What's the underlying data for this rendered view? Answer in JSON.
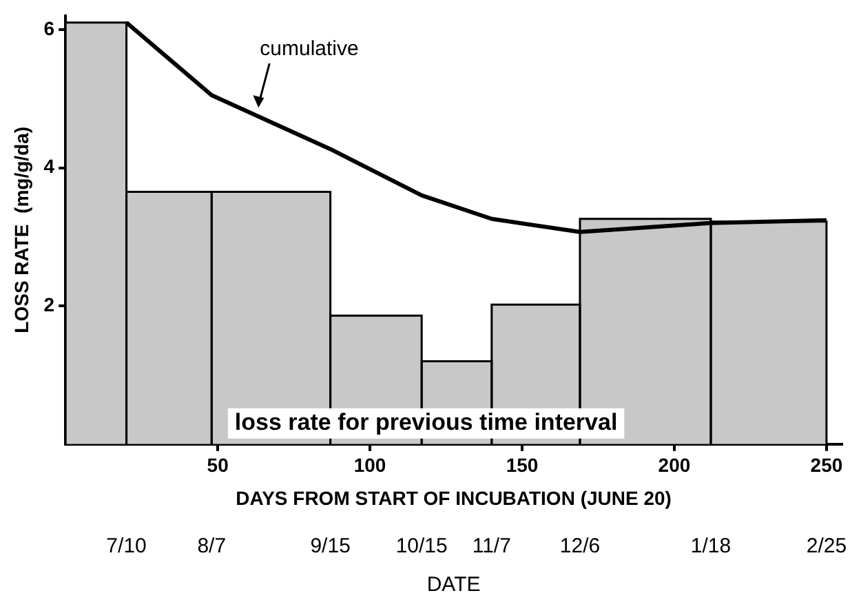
{
  "chart_data": {
    "type": "histogram",
    "xlabel": "DAYS FROM START OF INCUBATION (JUNE 20)",
    "ylabel": "LOSS RATE  (mg/g/da)",
    "bins": [
      0,
      20,
      48,
      87,
      117,
      140,
      169,
      212,
      250
    ],
    "series": [
      {
        "name": "loss rate for previous time interval",
        "type": "histogram",
        "color": "#c8c8c8",
        "values": [
          6.1,
          3.65,
          3.65,
          1.86,
          1.2,
          2.02,
          3.26,
          3.22
        ]
      },
      {
        "name": "cumulative",
        "type": "line",
        "color": "#000000",
        "x": [
          20,
          48,
          87,
          117,
          140,
          169,
          212,
          250
        ],
        "values": [
          6.1,
          5.05,
          4.27,
          3.6,
          3.26,
          3.07,
          3.2,
          3.24
        ]
      }
    ],
    "xlim": [
      0,
      255
    ],
    "xticks": [
      50,
      100,
      150,
      200,
      250
    ],
    "annotations": [
      "7/10",
      "8/7",
      "9/15",
      "10/15",
      "11/7",
      "12/6",
      "1/18",
      "2/25",
      "DATE"
    ],
    "ylim": [
      0,
      6.2
    ],
    "yticks": [
      2,
      4,
      6
    ]
  }
}
